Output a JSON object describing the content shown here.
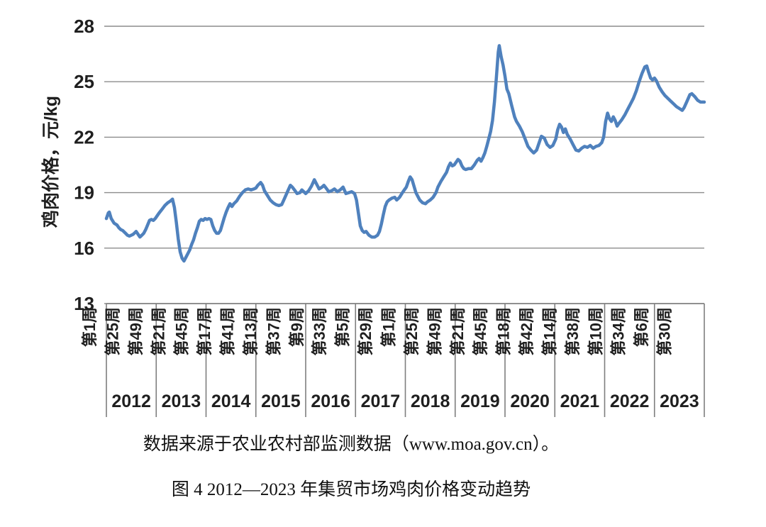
{
  "captions": {
    "source": "数据来源于农业农村部监测数据（www.moa.gov.cn）。",
    "figure": "图 4 2012—2023 年集贸市场鸡肉价格变动趋势"
  },
  "chart_data": {
    "type": "line",
    "title": "",
    "ylabel": "鸡肉价格，元/kg",
    "xlabel": "",
    "ylim": [
      13,
      28
    ],
    "y_ticks": [
      28,
      25,
      22,
      19,
      16,
      13
    ],
    "grid": "horizontal",
    "legend": "none",
    "series_name": "集贸市场鸡肉价格",
    "unit": "元/kg",
    "years": [
      "2012",
      "2013",
      "2014",
      "2015",
      "2016",
      "2017",
      "2018",
      "2019",
      "2020",
      "2021",
      "2022",
      "2023"
    ],
    "weeks_per_year": 52,
    "label_interval_weeks": 24,
    "week_tick_labels": [
      "第1周",
      "第25周",
      "第49周",
      "第21周",
      "第45周",
      "第17周",
      "第41周",
      "第13周",
      "第37周",
      "第9周",
      "第33周",
      "第5周",
      "第29周",
      "第1周",
      "第25周",
      "第49周",
      "第21周",
      "第45周",
      "第18周",
      "第42周",
      "第14周",
      "第38周",
      "第10周",
      "第34周",
      "第6周",
      "第30周"
    ],
    "colors": {
      "line": "#4F81BD",
      "grid": "#8C8C8C",
      "axis": "#7F7F7F",
      "text": "#1F1F1F"
    },
    "points": [
      [
        0,
        17.6
      ],
      [
        2,
        17.9
      ],
      [
        3,
        17.95
      ],
      [
        5,
        17.6
      ],
      [
        8,
        17.35
      ],
      [
        11,
        17.25
      ],
      [
        13,
        17.1
      ],
      [
        15,
        17.0
      ],
      [
        17,
        16.95
      ],
      [
        20,
        16.8
      ],
      [
        22,
        16.7
      ],
      [
        24,
        16.65
      ],
      [
        26,
        16.7
      ],
      [
        28,
        16.75
      ],
      [
        31,
        16.9
      ],
      [
        33,
        16.75
      ],
      [
        35,
        16.6
      ],
      [
        37,
        16.7
      ],
      [
        39,
        16.8
      ],
      [
        41,
        17.0
      ],
      [
        43,
        17.25
      ],
      [
        45,
        17.5
      ],
      [
        47,
        17.55
      ],
      [
        49,
        17.5
      ],
      [
        51,
        17.6
      ],
      [
        53,
        17.75
      ],
      [
        55,
        17.9
      ],
      [
        58,
        18.1
      ],
      [
        61,
        18.3
      ],
      [
        64,
        18.45
      ],
      [
        67,
        18.55
      ],
      [
        69,
        18.65
      ],
      [
        71,
        18.2
      ],
      [
        73,
        17.4
      ],
      [
        75,
        16.5
      ],
      [
        77,
        15.8
      ],
      [
        79,
        15.45
      ],
      [
        81,
        15.3
      ],
      [
        83,
        15.5
      ],
      [
        85,
        15.7
      ],
      [
        87,
        15.9
      ],
      [
        89,
        16.2
      ],
      [
        91,
        16.45
      ],
      [
        93,
        16.8
      ],
      [
        95,
        17.1
      ],
      [
        97,
        17.45
      ],
      [
        99,
        17.55
      ],
      [
        101,
        17.5
      ],
      [
        103,
        17.6
      ],
      [
        105,
        17.55
      ],
      [
        107,
        17.6
      ],
      [
        109,
        17.55
      ],
      [
        111,
        17.2
      ],
      [
        113,
        16.95
      ],
      [
        115,
        16.8
      ],
      [
        117,
        16.8
      ],
      [
        119,
        16.95
      ],
      [
        121,
        17.3
      ],
      [
        123,
        17.65
      ],
      [
        125,
        17.95
      ],
      [
        127,
        18.2
      ],
      [
        129,
        18.4
      ],
      [
        131,
        18.25
      ],
      [
        133,
        18.4
      ],
      [
        136,
        18.55
      ],
      [
        139,
        18.8
      ],
      [
        142,
        19.0
      ],
      [
        145,
        19.15
      ],
      [
        148,
        19.2
      ],
      [
        151,
        19.15
      ],
      [
        154,
        19.2
      ],
      [
        156,
        19.25
      ],
      [
        158,
        19.4
      ],
      [
        161,
        19.55
      ],
      [
        163,
        19.4
      ],
      [
        165,
        19.1
      ],
      [
        168,
        18.85
      ],
      [
        171,
        18.6
      ],
      [
        174,
        18.45
      ],
      [
        177,
        18.35
      ],
      [
        180,
        18.3
      ],
      [
        183,
        18.35
      ],
      [
        186,
        18.7
      ],
      [
        189,
        19.05
      ],
      [
        192,
        19.4
      ],
      [
        194,
        19.3
      ],
      [
        197,
        19.1
      ],
      [
        199,
        18.95
      ],
      [
        202,
        19.0
      ],
      [
        204,
        19.15
      ],
      [
        206,
        19.05
      ],
      [
        208,
        18.95
      ],
      [
        211,
        19.1
      ],
      [
        214,
        19.35
      ],
      [
        217,
        19.7
      ],
      [
        219,
        19.5
      ],
      [
        222,
        19.2
      ],
      [
        225,
        19.3
      ],
      [
        227,
        19.4
      ],
      [
        230,
        19.2
      ],
      [
        232,
        19.05
      ],
      [
        235,
        19.1
      ],
      [
        238,
        19.2
      ],
      [
        241,
        19.05
      ],
      [
        244,
        19.15
      ],
      [
        247,
        19.3
      ],
      [
        250,
        18.95
      ],
      [
        253,
        19.0
      ],
      [
        256,
        19.05
      ],
      [
        259,
        18.95
      ],
      [
        261,
        18.6
      ],
      [
        263,
        17.9
      ],
      [
        265,
        17.2
      ],
      [
        267,
        16.95
      ],
      [
        269,
        16.85
      ],
      [
        271,
        16.9
      ],
      [
        274,
        16.7
      ],
      [
        277,
        16.6
      ],
      [
        280,
        16.6
      ],
      [
        283,
        16.7
      ],
      [
        285,
        16.9
      ],
      [
        287,
        17.3
      ],
      [
        289,
        17.8
      ],
      [
        291,
        18.25
      ],
      [
        293,
        18.5
      ],
      [
        295,
        18.6
      ],
      [
        298,
        18.7
      ],
      [
        301,
        18.75
      ],
      [
        303,
        18.6
      ],
      [
        306,
        18.75
      ],
      [
        309,
        19.0
      ],
      [
        311,
        19.15
      ],
      [
        313,
        19.3
      ],
      [
        315,
        19.6
      ],
      [
        317,
        19.85
      ],
      [
        319,
        19.7
      ],
      [
        321,
        19.35
      ],
      [
        323,
        19.0
      ],
      [
        325,
        18.8
      ],
      [
        327,
        18.6
      ],
      [
        330,
        18.45
      ],
      [
        333,
        18.4
      ],
      [
        335,
        18.5
      ],
      [
        338,
        18.6
      ],
      [
        341,
        18.75
      ],
      [
        344,
        19.0
      ],
      [
        346,
        19.3
      ],
      [
        349,
        19.6
      ],
      [
        352,
        19.85
      ],
      [
        355,
        20.1
      ],
      [
        357,
        20.4
      ],
      [
        359,
        20.6
      ],
      [
        361,
        20.45
      ],
      [
        363,
        20.5
      ],
      [
        365,
        20.65
      ],
      [
        367,
        20.8
      ],
      [
        369,
        20.7
      ],
      [
        371,
        20.45
      ],
      [
        373,
        20.3
      ],
      [
        375,
        20.25
      ],
      [
        378,
        20.3
      ],
      [
        381,
        20.3
      ],
      [
        384,
        20.5
      ],
      [
        387,
        20.75
      ],
      [
        389,
        20.85
      ],
      [
        391,
        20.7
      ],
      [
        393,
        20.9
      ],
      [
        395,
        21.15
      ],
      [
        397,
        21.5
      ],
      [
        399,
        21.9
      ],
      [
        401,
        22.3
      ],
      [
        403,
        22.9
      ],
      [
        405,
        23.9
      ],
      [
        407,
        25.2
      ],
      [
        409,
        26.6
      ],
      [
        410,
        26.95
      ],
      [
        412,
        26.35
      ],
      [
        414,
        25.9
      ],
      [
        416,
        25.3
      ],
      [
        418,
        24.6
      ],
      [
        420,
        24.35
      ],
      [
        423,
        23.7
      ],
      [
        426,
        23.1
      ],
      [
        428,
        22.85
      ],
      [
        431,
        22.6
      ],
      [
        434,
        22.3
      ],
      [
        437,
        21.9
      ],
      [
        440,
        21.5
      ],
      [
        443,
        21.3
      ],
      [
        446,
        21.15
      ],
      [
        449,
        21.3
      ],
      [
        452,
        21.75
      ],
      [
        454,
        22.05
      ],
      [
        457,
        21.95
      ],
      [
        460,
        21.6
      ],
      [
        463,
        21.45
      ],
      [
        466,
        21.55
      ],
      [
        469,
        21.9
      ],
      [
        471,
        22.4
      ],
      [
        473,
        22.7
      ],
      [
        475,
        22.55
      ],
      [
        477,
        22.25
      ],
      [
        479,
        22.45
      ],
      [
        481,
        22.15
      ],
      [
        484,
        21.9
      ],
      [
        487,
        21.6
      ],
      [
        490,
        21.3
      ],
      [
        493,
        21.25
      ],
      [
        496,
        21.4
      ],
      [
        499,
        21.5
      ],
      [
        502,
        21.45
      ],
      [
        505,
        21.55
      ],
      [
        508,
        21.4
      ],
      [
        511,
        21.5
      ],
      [
        514,
        21.55
      ],
      [
        517,
        21.7
      ],
      [
        519,
        22.0
      ],
      [
        521,
        22.85
      ],
      [
        523,
        23.3
      ],
      [
        525,
        23.0
      ],
      [
        527,
        22.85
      ],
      [
        529,
        23.1
      ],
      [
        531,
        22.9
      ],
      [
        533,
        22.6
      ],
      [
        535,
        22.75
      ],
      [
        538,
        22.95
      ],
      [
        541,
        23.2
      ],
      [
        544,
        23.5
      ],
      [
        547,
        23.8
      ],
      [
        550,
        24.1
      ],
      [
        553,
        24.5
      ],
      [
        556,
        25.0
      ],
      [
        559,
        25.45
      ],
      [
        562,
        25.8
      ],
      [
        564,
        25.85
      ],
      [
        566,
        25.5
      ],
      [
        568,
        25.2
      ],
      [
        570,
        25.1
      ],
      [
        572,
        25.2
      ],
      [
        574,
        25.05
      ],
      [
        577,
        24.7
      ],
      [
        580,
        24.45
      ],
      [
        583,
        24.25
      ],
      [
        586,
        24.1
      ],
      [
        589,
        23.95
      ],
      [
        592,
        23.8
      ],
      [
        595,
        23.65
      ],
      [
        598,
        23.55
      ],
      [
        601,
        23.45
      ],
      [
        603,
        23.6
      ],
      [
        606,
        23.95
      ],
      [
        609,
        24.3
      ],
      [
        611,
        24.35
      ],
      [
        614,
        24.2
      ],
      [
        617,
        24.0
      ],
      [
        620,
        23.9
      ],
      [
        622,
        23.9
      ],
      [
        624,
        23.9
      ]
    ]
  }
}
